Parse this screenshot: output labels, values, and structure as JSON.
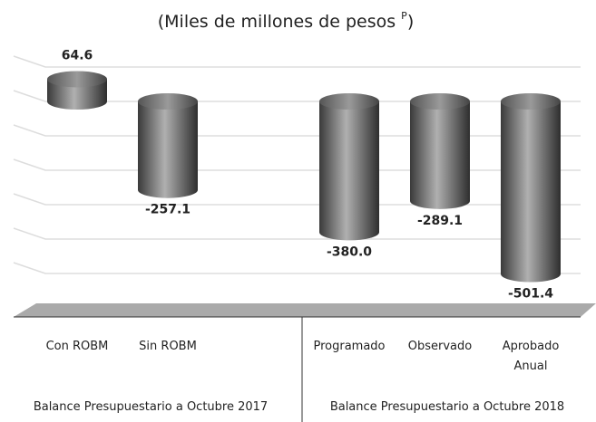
{
  "chart_data": {
    "type": "bar",
    "title_parts": [
      "(Miles de millones de pesos ",
      "P",
      ")"
    ],
    "categories": [
      "Con ROBM",
      "Sin ROBM",
      "Programado",
      "Observado",
      "Aprobado Anual"
    ],
    "values": [
      64.6,
      -257.1,
      -380.0,
      -289.1,
      -501.4
    ],
    "value_labels": [
      "64.6",
      "-257.1",
      "-380.0",
      "-289.1",
      "-501.4"
    ],
    "group_labels": [
      "Balance Presupuestario a Octubre 2017",
      "Balance Presupuestario a Octubre 2018"
    ],
    "color": "#5a5a5a",
    "ylim": [
      -600,
      150
    ],
    "yticks": [
      100,
      0,
      -100,
      -200,
      -300,
      -400,
      -500
    ],
    "grid": true
  }
}
